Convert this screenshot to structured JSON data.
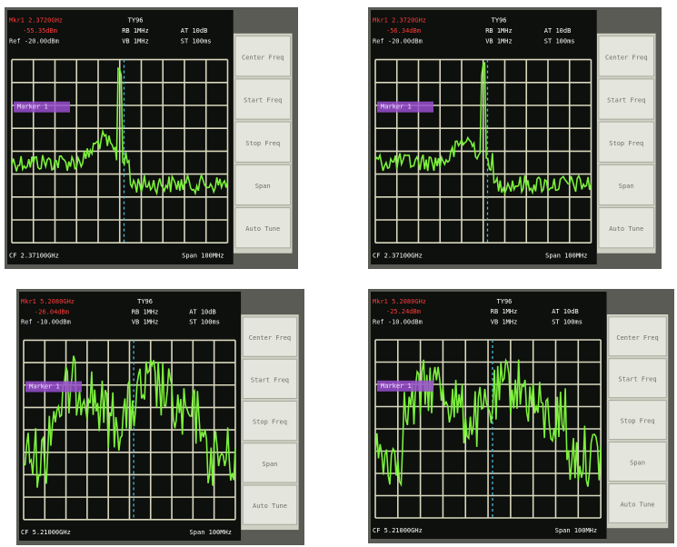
{
  "panels": [
    {
      "marker_freq": "Mkr1 2.3720GHz",
      "marker_level": "-55.35dBm",
      "ref_level": "Ref -20.00dBm",
      "model": "TY96",
      "rbw": "RB 1MHz",
      "vbw": "VB 1MHz",
      "attenuation": "AT 10dB",
      "sweep": "ST 100ms",
      "marker_box": "Marker 1",
      "center": "CF 2.37100GHz",
      "span": "Span 100MHz",
      "softkeys": [
        "Center Freq",
        "Start Freq",
        "Stop Freq",
        "Span",
        "Auto Tune"
      ]
    },
    {
      "marker_freq": "Mkr1 2.3720GHz",
      "marker_level": "-56.34dBm",
      "ref_level": "Ref -20.00dBm",
      "model": "TY96",
      "rbw": "RB 1MHz",
      "vbw": "VB 1MHz",
      "attenuation": "AT 10dB",
      "sweep": "ST 100ms",
      "marker_box": "Marker 1",
      "center": "CF 2.37100GHz",
      "span": "Span 100MHz",
      "softkeys": [
        "Center Freq",
        "Start Freq",
        "Stop Freq",
        "Span",
        "Auto Tune"
      ]
    },
    {
      "marker_freq": "Mkr1 5.2080GHz",
      "marker_level": "-26.04dBm",
      "ref_level": "Ref -10.00dBm",
      "model": "TY96",
      "rbw": "RB 1MHz",
      "vbw": "VB 1MHz",
      "attenuation": "AT 10dB",
      "sweep": "ST 100ms",
      "marker_box": "Marker 1",
      "center": "CF 5.21000GHz",
      "span": "Span 100MHz",
      "softkeys": [
        "Center Freq",
        "Start Freq",
        "Stop Freq",
        "Span",
        "Auto Tune"
      ]
    },
    {
      "marker_freq": "Mkr1 5.2080GHz",
      "marker_level": "-25.24dBm",
      "ref_level": "Ref -10.00dBm",
      "model": "TY96",
      "rbw": "RB 1MHz",
      "vbw": "VB 1MHz",
      "attenuation": "AT 10dB",
      "sweep": "ST 100ms",
      "marker_box": "Marker 1",
      "center": "CF 5.21000GHz",
      "span": "Span 100MHz",
      "softkeys": [
        "Center Freq",
        "Start Freq",
        "Stop Freq",
        "Span",
        "Auto Tune"
      ]
    }
  ]
}
